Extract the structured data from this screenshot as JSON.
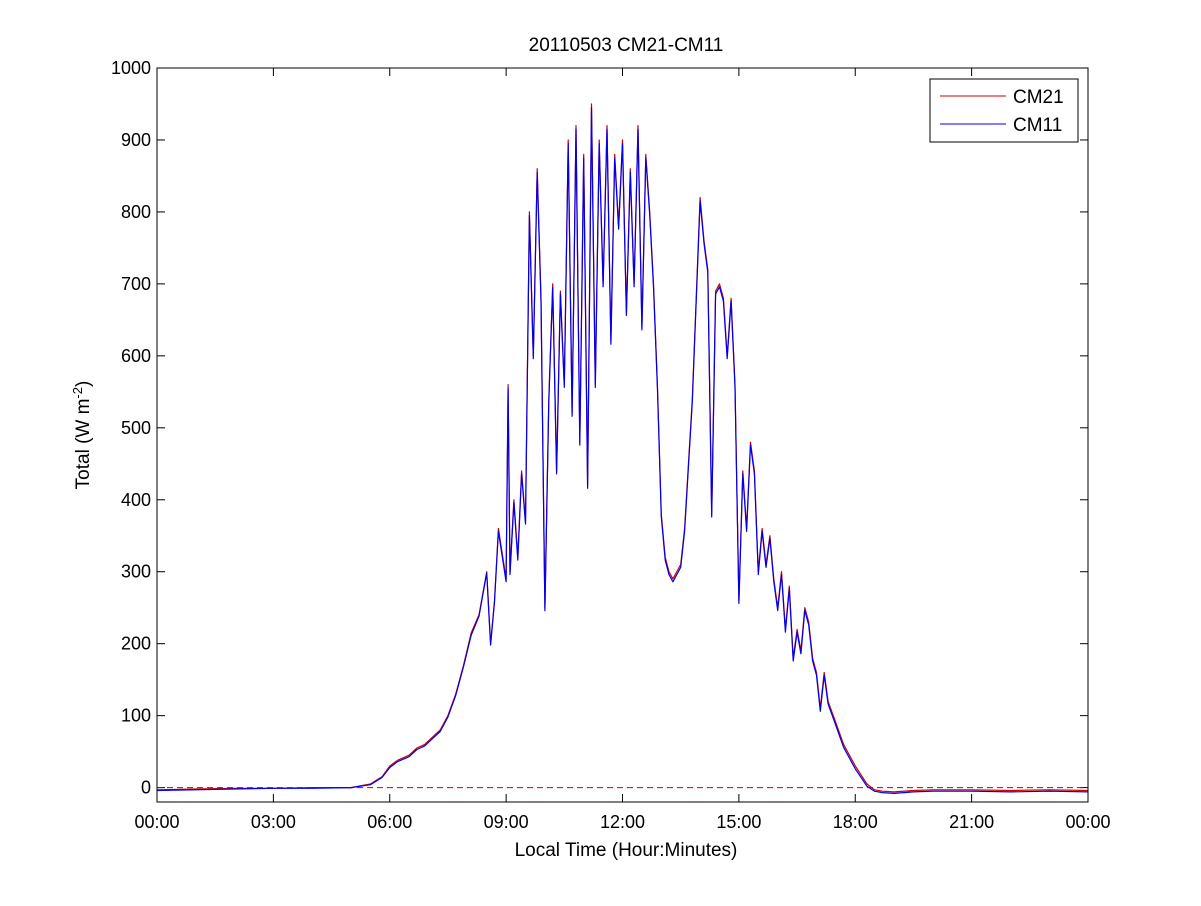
{
  "chart_data": {
    "type": "line",
    "title": "20110503 CM21-CM11",
    "xlabel": "Local Time (Hour:Minutes)",
    "ylabel": {
      "main": "Total (W m",
      "sup": "-2",
      "tail": ")"
    },
    "xlim": [
      0,
      24
    ],
    "ylim": [
      -20,
      1000
    ],
    "x_ticks": [
      0,
      3,
      6,
      9,
      12,
      15,
      18,
      21,
      24
    ],
    "x_tick_labels": [
      "00:00",
      "03:00",
      "06:00",
      "09:00",
      "12:00",
      "15:00",
      "18:00",
      "21:00",
      "00:00"
    ],
    "y_ticks": [
      0,
      100,
      200,
      300,
      400,
      500,
      600,
      700,
      800,
      900,
      1000
    ],
    "y_tick_labels": [
      "0",
      "100",
      "200",
      "300",
      "400",
      "500",
      "600",
      "700",
      "800",
      "900",
      "1000"
    ],
    "grid": false,
    "legend": {
      "position": "top-right"
    },
    "colors": {
      "CM21": "#cc0000",
      "CM11": "#0000ee",
      "reference": "#cc0000"
    },
    "reference_line": {
      "y": 0,
      "style": "dashed"
    },
    "series": [
      {
        "name": "CM21",
        "x": [
          0,
          1,
          2,
          3,
          4,
          5,
          5.5,
          5.8,
          6.0,
          6.2,
          6.5,
          6.7,
          6.9,
          7.1,
          7.3,
          7.5,
          7.7,
          7.9,
          8.1,
          8.3,
          8.5,
          8.6,
          8.7,
          8.8,
          9.0,
          9.05,
          9.1,
          9.2,
          9.3,
          9.4,
          9.5,
          9.6,
          9.7,
          9.8,
          9.9,
          10.0,
          10.1,
          10.2,
          10.3,
          10.4,
          10.5,
          10.6,
          10.7,
          10.8,
          10.9,
          11.0,
          11.1,
          11.2,
          11.3,
          11.4,
          11.5,
          11.6,
          11.7,
          11.8,
          11.9,
          12.0,
          12.1,
          12.2,
          12.3,
          12.4,
          12.5,
          12.6,
          12.7,
          12.8,
          12.9,
          13.0,
          13.1,
          13.2,
          13.3,
          13.5,
          13.6,
          13.8,
          14.0,
          14.1,
          14.2,
          14.3,
          14.4,
          14.5,
          14.6,
          14.7,
          14.8,
          14.9,
          15.0,
          15.1,
          15.2,
          15.3,
          15.4,
          15.5,
          15.6,
          15.7,
          15.8,
          15.9,
          16.0,
          16.1,
          16.2,
          16.3,
          16.4,
          16.5,
          16.6,
          16.7,
          16.8,
          16.9,
          17.0,
          17.1,
          17.2,
          17.3,
          17.5,
          17.7,
          18.0,
          18.3,
          18.5,
          18.7,
          19.0,
          19.5,
          20.0,
          21.0,
          22.0,
          23.0,
          24.0
        ],
        "values": [
          -3,
          -2,
          -1,
          -1,
          0,
          0,
          5,
          15,
          30,
          38,
          45,
          55,
          60,
          70,
          80,
          100,
          130,
          170,
          215,
          240,
          300,
          200,
          260,
          360,
          290,
          560,
          300,
          400,
          320,
          440,
          370,
          800,
          600,
          860,
          680,
          250,
          540,
          700,
          440,
          690,
          560,
          900,
          520,
          920,
          480,
          880,
          420,
          950,
          560,
          900,
          700,
          920,
          620,
          880,
          780,
          900,
          660,
          860,
          700,
          920,
          640,
          880,
          800,
          700,
          560,
          380,
          320,
          300,
          290,
          310,
          360,
          540,
          820,
          760,
          720,
          380,
          690,
          700,
          680,
          600,
          680,
          560,
          260,
          440,
          360,
          480,
          440,
          300,
          360,
          310,
          350,
          290,
          250,
          300,
          220,
          280,
          180,
          220,
          190,
          250,
          230,
          180,
          160,
          110,
          160,
          120,
          90,
          60,
          30,
          5,
          -3,
          -5,
          -6,
          -4,
          -3,
          -3,
          -4,
          -3,
          -4
        ]
      },
      {
        "name": "CM11",
        "x": [
          0,
          1,
          2,
          3,
          4,
          5,
          5.5,
          5.8,
          6.0,
          6.2,
          6.5,
          6.7,
          6.9,
          7.1,
          7.3,
          7.5,
          7.7,
          7.9,
          8.1,
          8.3,
          8.5,
          8.6,
          8.7,
          8.8,
          9.0,
          9.05,
          9.1,
          9.2,
          9.3,
          9.4,
          9.5,
          9.6,
          9.7,
          9.8,
          9.9,
          10.0,
          10.1,
          10.2,
          10.3,
          10.4,
          10.5,
          10.6,
          10.7,
          10.8,
          10.9,
          11.0,
          11.1,
          11.2,
          11.3,
          11.4,
          11.5,
          11.6,
          11.7,
          11.8,
          11.9,
          12.0,
          12.1,
          12.2,
          12.3,
          12.4,
          12.5,
          12.6,
          12.7,
          12.8,
          12.9,
          13.0,
          13.1,
          13.2,
          13.3,
          13.5,
          13.6,
          13.8,
          14.0,
          14.1,
          14.2,
          14.3,
          14.4,
          14.5,
          14.6,
          14.7,
          14.8,
          14.9,
          15.0,
          15.1,
          15.2,
          15.3,
          15.4,
          15.5,
          15.6,
          15.7,
          15.8,
          15.9,
          16.0,
          16.1,
          16.2,
          16.3,
          16.4,
          16.5,
          16.6,
          16.7,
          16.8,
          16.9,
          17.0,
          17.1,
          17.2,
          17.3,
          17.5,
          17.7,
          18.0,
          18.3,
          18.5,
          18.7,
          19.0,
          19.5,
          20.0,
          21.0,
          22.0,
          23.0,
          24.0
        ],
        "values": [
          -4,
          -3,
          -2,
          -1,
          -1,
          0,
          4,
          14,
          28,
          36,
          43,
          53,
          58,
          68,
          78,
          98,
          128,
          168,
          212,
          238,
          298,
          198,
          258,
          356,
          286,
          555,
          296,
          396,
          316,
          436,
          366,
          795,
          596,
          855,
          676,
          246,
          536,
          695,
          436,
          686,
          556,
          895,
          516,
          915,
          476,
          875,
          416,
          945,
          556,
          895,
          696,
          915,
          616,
          875,
          776,
          895,
          656,
          855,
          696,
          915,
          636,
          875,
          796,
          696,
          556,
          376,
          316,
          296,
          286,
          306,
          356,
          536,
          815,
          756,
          716,
          376,
          686,
          696,
          676,
          596,
          676,
          556,
          256,
          436,
          356,
          476,
          436,
          296,
          356,
          306,
          346,
          286,
          246,
          296,
          216,
          276,
          176,
          216,
          186,
          246,
          226,
          176,
          156,
          106,
          156,
          116,
          86,
          56,
          26,
          2,
          -5,
          -7,
          -8,
          -6,
          -5,
          -5,
          -6,
          -5,
          -6
        ]
      }
    ]
  }
}
